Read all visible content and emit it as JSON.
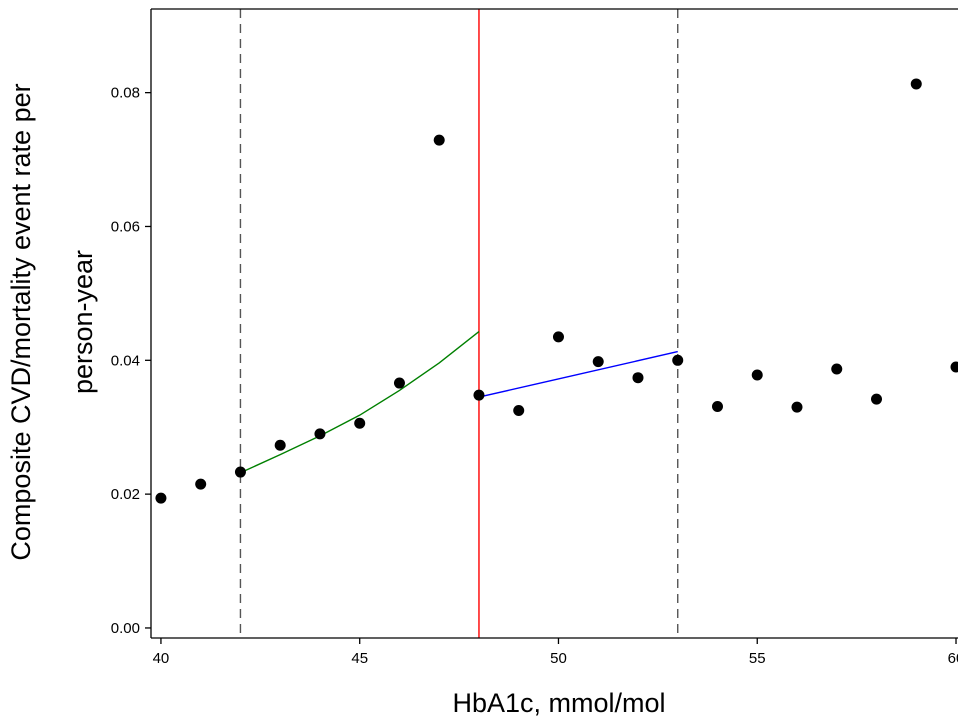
{
  "chart_data": {
    "type": "scatter",
    "xlabel": "HbA1c, mmol/mol",
    "ylabel_lines": [
      "Composite CVD/mortality event rate per",
      "person-year"
    ],
    "xlim": [
      39.75,
      60.05
    ],
    "ylim": [
      -0.0015,
      0.0925
    ],
    "x_ticks": [
      40,
      45,
      50,
      55,
      60
    ],
    "x_tick_labels": [
      "40",
      "45",
      "50",
      "55",
      "60"
    ],
    "y_ticks": [
      0.0,
      0.02,
      0.04,
      0.06,
      0.08
    ],
    "y_tick_labels": [
      "0.00",
      "0.02",
      "0.04",
      "0.06",
      "0.08"
    ],
    "grid": false,
    "points": [
      {
        "x": 40,
        "y": 0.0194
      },
      {
        "x": 41,
        "y": 0.0215
      },
      {
        "x": 42,
        "y": 0.0233
      },
      {
        "x": 43,
        "y": 0.0273
      },
      {
        "x": 44,
        "y": 0.029
      },
      {
        "x": 45,
        "y": 0.0306
      },
      {
        "x": 46,
        "y": 0.0366
      },
      {
        "x": 47,
        "y": 0.0729
      },
      {
        "x": 48,
        "y": 0.0348
      },
      {
        "x": 49,
        "y": 0.0325
      },
      {
        "x": 50,
        "y": 0.0435
      },
      {
        "x": 51,
        "y": 0.0398
      },
      {
        "x": 52,
        "y": 0.0374
      },
      {
        "x": 53,
        "y": 0.04
      },
      {
        "x": 54,
        "y": 0.0331
      },
      {
        "x": 55,
        "y": 0.0378
      },
      {
        "x": 56,
        "y": 0.033
      },
      {
        "x": 57,
        "y": 0.0387
      },
      {
        "x": 58,
        "y": 0.0342
      },
      {
        "x": 59,
        "y": 0.0813
      },
      {
        "x": 60,
        "y": 0.039
      }
    ],
    "point_color": "#000000",
    "fit_lines": [
      {
        "color": "#008000",
        "x": [
          42,
          43,
          44,
          45,
          46,
          47,
          48
        ],
        "y": [
          0.0232,
          0.0259,
          0.0287,
          0.0318,
          0.0355,
          0.0396,
          0.0443
        ]
      },
      {
        "color": "#0000ff",
        "x": [
          48,
          53
        ],
        "y": [
          0.0345,
          0.0413
        ]
      }
    ],
    "vertical_lines": [
      {
        "x": 42,
        "style": "dashed",
        "color": "#555555"
      },
      {
        "x": 48,
        "style": "solid",
        "color": "#ff0000"
      },
      {
        "x": 53,
        "style": "dashed",
        "color": "#555555"
      }
    ]
  }
}
